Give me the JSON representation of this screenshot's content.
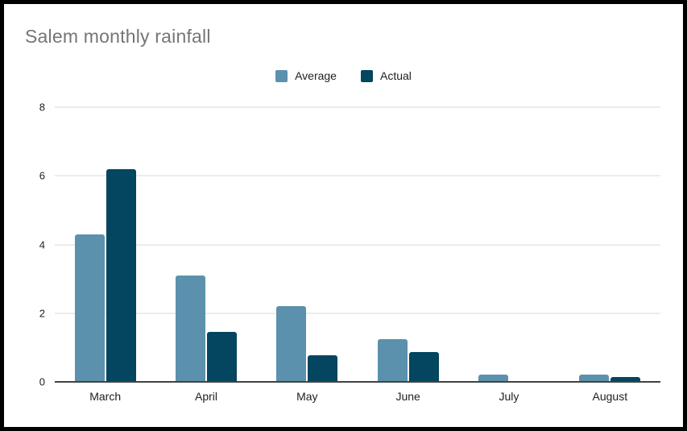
{
  "chart_data": {
    "type": "bar",
    "title": "Salem monthly rainfall",
    "categories": [
      "March",
      "April",
      "May",
      "June",
      "July",
      "August"
    ],
    "series": [
      {
        "name": "Average",
        "color": "#5b91ad",
        "values": [
          4.3,
          3.1,
          2.2,
          1.25,
          0.22,
          0.22
        ]
      },
      {
        "name": "Actual",
        "color": "#04455f",
        "values": [
          6.2,
          1.45,
          0.78,
          0.87,
          0,
          0.13
        ]
      }
    ],
    "xlabel": "",
    "ylabel": "",
    "ylim": [
      0,
      8
    ],
    "yticks": [
      0,
      2,
      4,
      6,
      8
    ],
    "grid": true,
    "legend_position": "top-center"
  },
  "colors": {
    "title_text": "#757575",
    "axis_text": "#212121",
    "gridline": "#d9d9d9",
    "axis_line": "#424242",
    "frame_border": "#000000",
    "background": "#ffffff"
  }
}
